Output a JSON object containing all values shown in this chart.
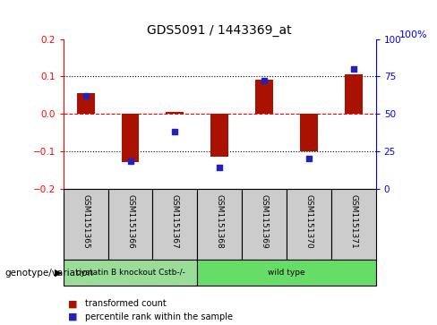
{
  "title": "GDS5091 / 1443369_at",
  "samples": [
    "GSM1151365",
    "GSM1151366",
    "GSM1151367",
    "GSM1151368",
    "GSM1151369",
    "GSM1151370",
    "GSM1151371"
  ],
  "bar_values": [
    0.055,
    -0.13,
    0.005,
    -0.115,
    0.09,
    -0.1,
    0.105
  ],
  "percentile_values": [
    62,
    18,
    38,
    14,
    72,
    20,
    80
  ],
  "ylim_left": [
    -0.2,
    0.2
  ],
  "ylim_right": [
    0,
    100
  ],
  "bar_color": "#aa1100",
  "dot_color": "#2222bb",
  "groups": [
    {
      "label": "cystatin B knockout Cstb-/-",
      "start": 0,
      "end": 3,
      "color": "#99dd99"
    },
    {
      "label": "wild type",
      "start": 3,
      "end": 7,
      "color": "#66dd66"
    }
  ],
  "sample_box_color": "#cccccc",
  "genotype_label": "genotype/variation",
  "legend_bar_label": "transformed count",
  "legend_dot_label": "percentile rank within the sample",
  "yticks_left": [
    -0.2,
    -0.1,
    0.0,
    0.1,
    0.2
  ],
  "yticks_right": [
    0,
    25,
    50,
    75,
    100
  ],
  "hline_dotted": [
    -0.1,
    0.1
  ],
  "hline_red": 0.0,
  "right_axis_top_label": "100%"
}
